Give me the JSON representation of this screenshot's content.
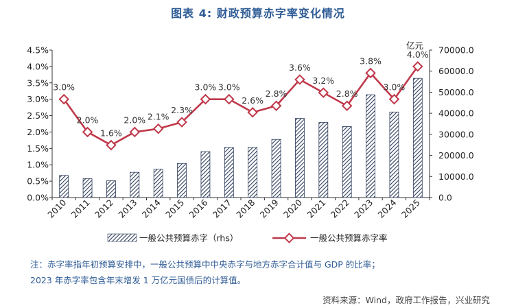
{
  "title": "图表 4:   财政预算赤字率变化情况",
  "chart_data": {
    "type": "bar+line",
    "categories": [
      "2010",
      "2011",
      "2012",
      "2013",
      "2014",
      "2015",
      "2016",
      "2017",
      "2018",
      "2019",
      "2020",
      "2021",
      "2022",
      "2023",
      "2024",
      "2025"
    ],
    "series": [
      {
        "name": "一般公共预算赤字（rhs）",
        "type": "bar",
        "axis": "right",
        "values": [
          10500,
          9000,
          8000,
          12000,
          13500,
          16200,
          21800,
          23800,
          23800,
          27600,
          37600,
          35700,
          33700,
          48800,
          40600,
          56600
        ]
      },
      {
        "name": "一般公共预算赤字率",
        "type": "line",
        "axis": "left",
        "values": [
          3.0,
          2.0,
          1.6,
          2.0,
          2.1,
          2.3,
          3.0,
          3.0,
          2.6,
          2.8,
          3.6,
          3.2,
          2.8,
          3.8,
          3.0,
          4.0
        ],
        "labels": [
          "3.0%",
          "2.0%",
          "1.6%",
          "2.0%",
          "2.1%",
          "2.3%",
          "3.0%",
          "3.0%",
          "2.6%",
          "2.8%",
          "3.6%",
          "3.2%",
          "2.8%",
          "3.8%",
          "3.0%",
          "4.0%"
        ]
      }
    ],
    "left_axis": {
      "ylim": [
        0,
        4.5
      ],
      "ticks": [
        "0.0%",
        "0.5%",
        "1.0%",
        "1.5%",
        "2.0%",
        "2.5%",
        "3.0%",
        "3.5%",
        "4.0%",
        "4.5%"
      ]
    },
    "right_axis": {
      "unit": "亿元",
      "ylim": [
        0,
        70000
      ],
      "ticks": [
        "0.0",
        "10000.0",
        "20000.0",
        "30000.0",
        "40000.0",
        "50000.0",
        "60000.0",
        "70000.0"
      ]
    },
    "grid": false,
    "legend_position": "bottom"
  },
  "notes": [
    "注：赤字率指年初预算安排中，一般公共预算中中央赤字与地方赤字合计值与 GDP 的比率；",
    "2023 年赤字率包含年末增发 1 万亿元国债后的计算值。"
  ],
  "source": "资料来源：Wind，政府工作报告，兴业研究",
  "colors": {
    "line": "#c0394b",
    "bar_stroke": "#2f3e5c",
    "title": "#2f5c96",
    "note": "#2f5c96"
  }
}
